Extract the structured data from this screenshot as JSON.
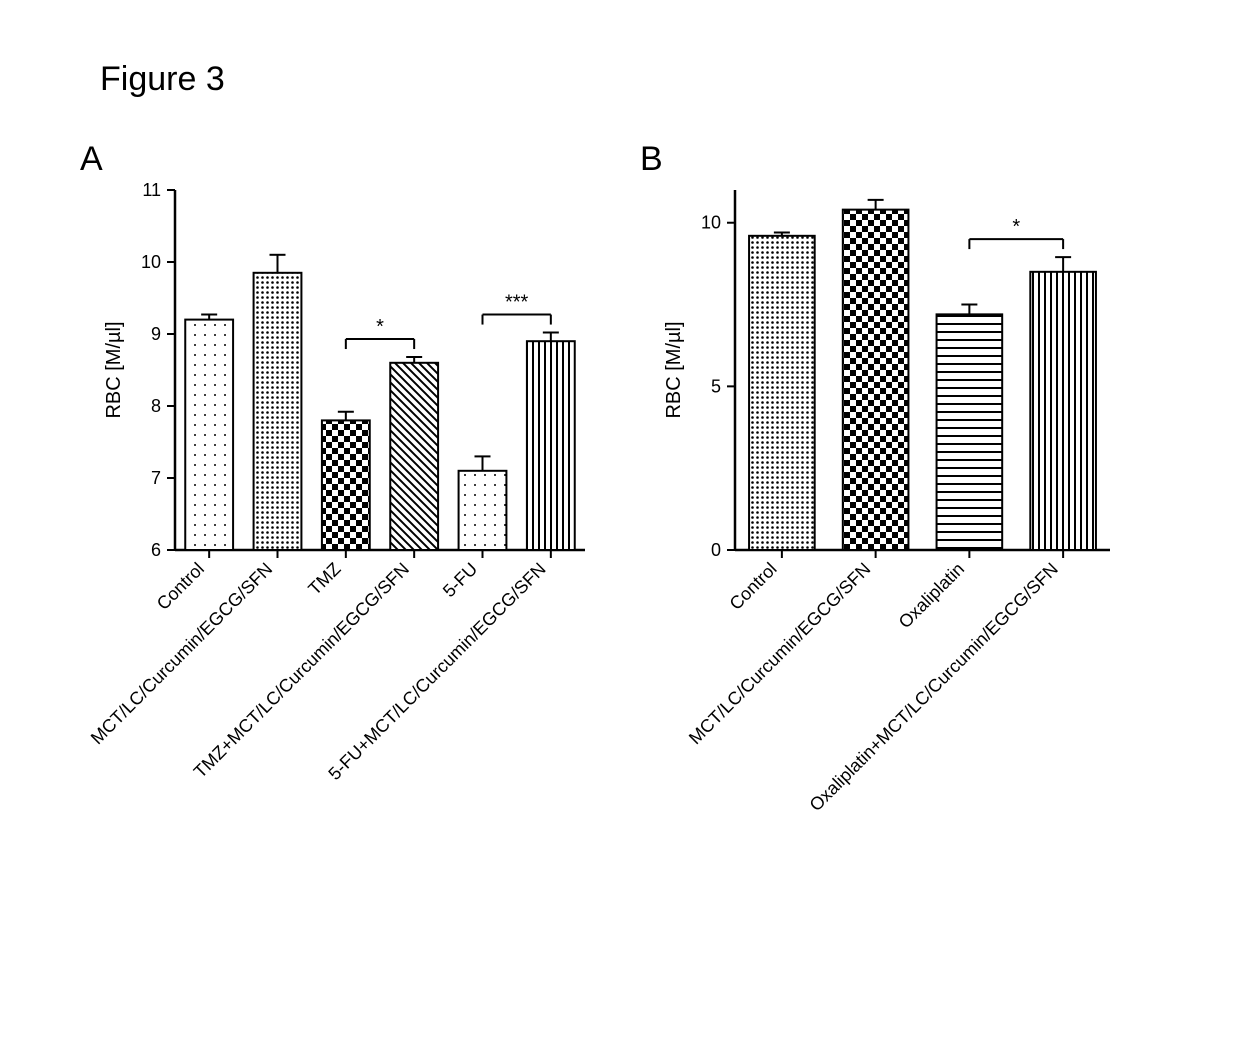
{
  "figure_title": "Figure 3",
  "background_color": "#ffffff",
  "axis_color": "#000000",
  "text_color": "#000000",
  "panel_A": {
    "label": "A",
    "ylabel": "RBC [M/µl]",
    "ylim": [
      6,
      11
    ],
    "ytick_step": 1,
    "bar_width": 0.7,
    "axis_fontsize": 20,
    "tick_fontsize": 18,
    "xlabel_fontsize": 18,
    "categories": [
      "Control",
      "MCT/LC/Curcumin/EGCG/SFN",
      "TMZ",
      "TMZ+MCT/LC/Curcumin/EGCG/SFN",
      "5-FU",
      "5-FU+MCT/LC/Curcumin/EGCG/SFN"
    ],
    "values": [
      9.2,
      9.85,
      7.8,
      8.6,
      7.1,
      8.9
    ],
    "errors": [
      0.07,
      0.25,
      0.12,
      0.08,
      0.2,
      0.12
    ],
    "patterns": [
      "dots-sparse",
      "dots-dense",
      "checker",
      "diag-left",
      "dots-sparse",
      "vlines"
    ],
    "sig_brackets": [
      {
        "from": 2,
        "to": 3,
        "label": "*"
      },
      {
        "from": 4,
        "to": 5,
        "label": "***"
      }
    ]
  },
  "panel_B": {
    "label": "B",
    "ylabel": "RBC [M/µl]",
    "ylim": [
      0,
      11
    ],
    "ytick_step": 5,
    "yticks": [
      0,
      5,
      10
    ],
    "bar_width": 0.7,
    "axis_fontsize": 20,
    "tick_fontsize": 18,
    "xlabel_fontsize": 18,
    "categories": [
      "Control",
      "MCT/LC/Curcumin/EGCG/SFN",
      "Oxaliplatin",
      "Oxaliplatin+MCT/LC/Curcumin/EGCG/SFN"
    ],
    "values": [
      9.6,
      10.4,
      7.2,
      8.5
    ],
    "errors": [
      0.1,
      0.3,
      0.3,
      0.45
    ],
    "patterns": [
      "dots-dense",
      "checker",
      "hlines",
      "vlines"
    ],
    "sig_brackets": [
      {
        "from": 2,
        "to": 3,
        "label": "*"
      }
    ]
  }
}
